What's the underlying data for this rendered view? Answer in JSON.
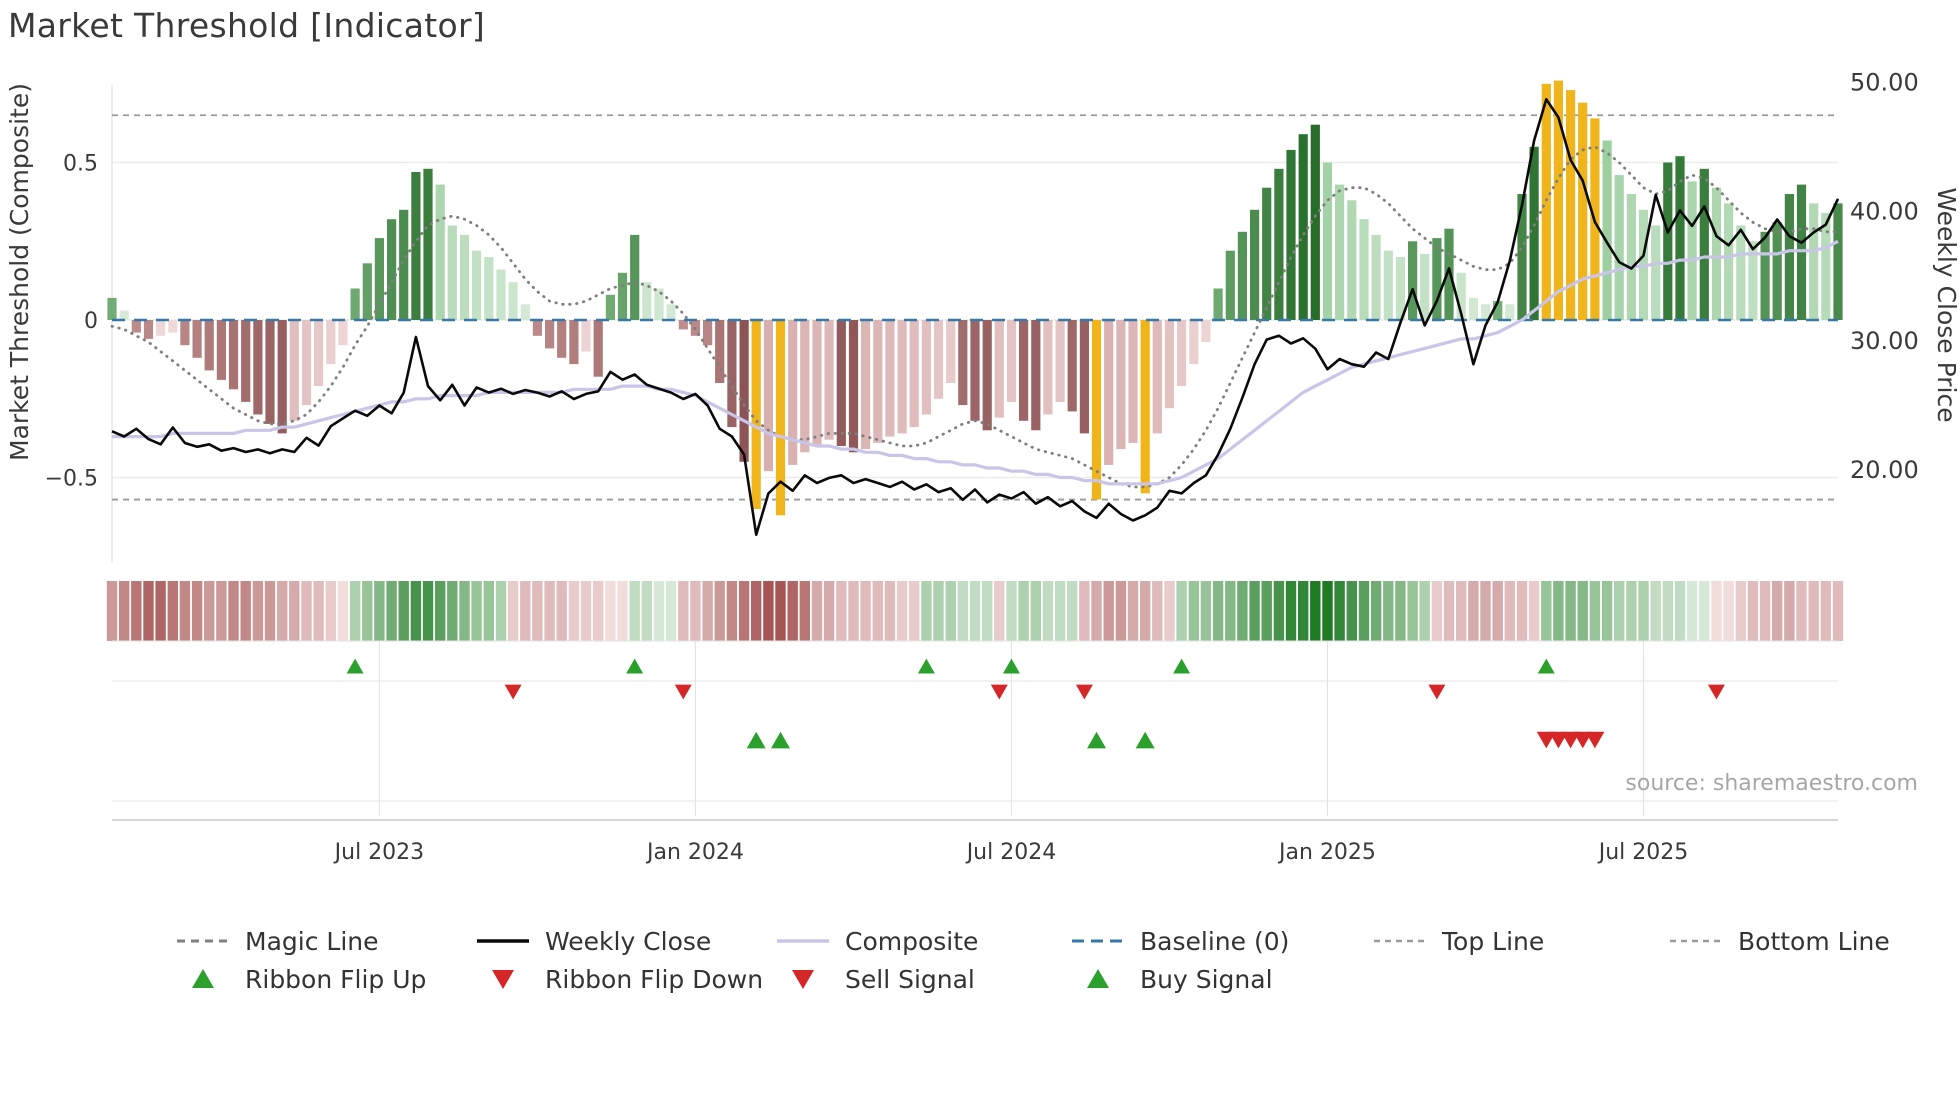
{
  "chart_data": {
    "type": "mixed",
    "title": "Market Threshold [Indicator]",
    "source": "source: sharemaestro.com",
    "left_axis": {
      "label": "Market Threshold (Composite)",
      "ticks": [
        "0.5",
        "0",
        "−0.5"
      ],
      "tick_values": [
        0.5,
        0,
        -0.5
      ]
    },
    "right_axis": {
      "label": "Weekly Close Price",
      "ticks": [
        "50.00",
        "40.00",
        "30.00",
        "20.00"
      ],
      "tick_values": [
        50,
        40,
        30,
        20
      ]
    },
    "x_ticks": [
      {
        "index": 22,
        "label": "Jul 2023"
      },
      {
        "index": 48,
        "label": "Jan 2024"
      },
      {
        "index": 74,
        "label": "Jul 2024"
      },
      {
        "index": 100,
        "label": "Jan 2025"
      },
      {
        "index": 126,
        "label": "Jul 2025"
      }
    ],
    "top_line": 0.65,
    "bottom_line": -0.57,
    "baseline": 0,
    "threshold_bars": [
      0.07,
      0.03,
      -0.04,
      -0.06,
      -0.05,
      -0.04,
      -0.08,
      -0.12,
      -0.16,
      -0.19,
      -0.22,
      -0.26,
      -0.3,
      -0.33,
      -0.36,
      -0.32,
      -0.27,
      -0.21,
      -0.14,
      -0.08,
      0.1,
      0.18,
      0.26,
      0.32,
      0.35,
      0.47,
      0.48,
      0.43,
      0.3,
      0.27,
      0.22,
      0.2,
      0.16,
      0.12,
      0.05,
      -0.05,
      -0.09,
      -0.12,
      -0.14,
      -0.1,
      -0.18,
      0.08,
      0.15,
      0.27,
      0.12,
      0.1,
      0.05,
      -0.03,
      -0.05,
      -0.08,
      -0.2,
      -0.34,
      -0.45,
      -0.6,
      -0.48,
      -0.62,
      -0.46,
      -0.42,
      -0.4,
      -0.38,
      -0.4,
      -0.42,
      -0.41,
      -0.39,
      -0.37,
      -0.36,
      -0.34,
      -0.3,
      -0.25,
      -0.2,
      -0.27,
      -0.32,
      -0.35,
      -0.31,
      -0.26,
      -0.32,
      -0.35,
      -0.3,
      -0.26,
      -0.29,
      -0.36,
      -0.57,
      -0.46,
      -0.41,
      -0.39,
      -0.55,
      -0.36,
      -0.28,
      -0.21,
      -0.14,
      -0.07,
      0.1,
      0.22,
      0.28,
      0.35,
      0.42,
      0.48,
      0.54,
      0.59,
      0.62,
      0.5,
      0.43,
      0.38,
      0.32,
      0.27,
      0.22,
      0.2,
      0.25,
      0.21,
      0.26,
      0.29,
      0.15,
      0.07,
      0.05,
      0.06,
      0.05,
      0.4,
      0.55,
      0.75,
      0.76,
      0.73,
      0.69,
      0.64,
      0.57,
      0.46,
      0.4,
      0.35,
      0.3,
      0.5,
      0.52,
      0.44,
      0.48,
      0.42,
      0.37,
      0.3,
      0.25,
      0.28,
      0.31,
      0.4,
      0.43,
      0.37,
      0.34,
      0.37
    ],
    "weekly_close": [
      23.0,
      22.6,
      23.2,
      22.4,
      22.0,
      23.3,
      22.1,
      21.8,
      22.0,
      21.5,
      21.7,
      21.4,
      21.6,
      21.3,
      21.6,
      21.4,
      22.5,
      21.9,
      23.4,
      24.0,
      24.6,
      24.2,
      25.0,
      24.4,
      26.0,
      30.3,
      26.5,
      25.4,
      26.6,
      25.0,
      26.4,
      26.0,
      26.3,
      25.9,
      26.2,
      26.0,
      25.7,
      26.1,
      25.5,
      25.9,
      26.1,
      27.6,
      27.0,
      27.4,
      26.6,
      26.3,
      26.0,
      25.5,
      25.9,
      25.0,
      23.2,
      22.6,
      21.2,
      15.0,
      18.2,
      19.1,
      18.4,
      19.6,
      19.0,
      19.4,
      19.6,
      19.0,
      19.3,
      19.0,
      18.7,
      19.1,
      18.5,
      18.9,
      18.3,
      18.6,
      17.7,
      18.5,
      17.5,
      18.1,
      17.8,
      18.3,
      17.4,
      17.9,
      17.2,
      17.6,
      16.8,
      16.3,
      17.4,
      16.6,
      16.1,
      16.5,
      17.1,
      18.4,
      18.2,
      19.0,
      19.6,
      21.2,
      23.2,
      25.6,
      28.2,
      30.1,
      30.4,
      29.8,
      30.2,
      29.4,
      27.8,
      28.6,
      28.2,
      28.0,
      29.1,
      28.6,
      31.4,
      34.0,
      31.2,
      33.1,
      35.6,
      32.1,
      28.2,
      31.2,
      33.0,
      36.2,
      40.5,
      45.5,
      48.7,
      47.3,
      44.0,
      42.4,
      39.2,
      37.6,
      36.1,
      35.6,
      36.6,
      41.3,
      38.4,
      40.1,
      38.9,
      40.4,
      38.1,
      37.4,
      38.6,
      37.1,
      38.0,
      39.4,
      38.1,
      37.6,
      38.4,
      39.0,
      41.0
    ],
    "magic_line": [
      -0.02,
      -0.03,
      -0.05,
      -0.07,
      -0.1,
      -0.13,
      -0.16,
      -0.19,
      -0.22,
      -0.25,
      -0.28,
      -0.3,
      -0.32,
      -0.33,
      -0.33,
      -0.32,
      -0.3,
      -0.26,
      -0.21,
      -0.15,
      -0.08,
      -0.02,
      0.05,
      0.12,
      0.19,
      0.25,
      0.3,
      0.32,
      0.33,
      0.32,
      0.3,
      0.27,
      0.23,
      0.18,
      0.13,
      0.09,
      0.06,
      0.05,
      0.05,
      0.06,
      0.08,
      0.1,
      0.11,
      0.12,
      0.11,
      0.09,
      0.06,
      0.02,
      -0.03,
      -0.09,
      -0.15,
      -0.21,
      -0.27,
      -0.32,
      -0.35,
      -0.37,
      -0.38,
      -0.38,
      -0.37,
      -0.36,
      -0.36,
      -0.36,
      -0.37,
      -0.38,
      -0.39,
      -0.4,
      -0.4,
      -0.39,
      -0.37,
      -0.35,
      -0.33,
      -0.32,
      -0.33,
      -0.35,
      -0.37,
      -0.39,
      -0.41,
      -0.42,
      -0.43,
      -0.44,
      -0.46,
      -0.48,
      -0.5,
      -0.52,
      -0.53,
      -0.53,
      -0.52,
      -0.5,
      -0.46,
      -0.41,
      -0.35,
      -0.28,
      -0.2,
      -0.12,
      -0.04,
      0.04,
      0.12,
      0.2,
      0.27,
      0.33,
      0.38,
      0.41,
      0.42,
      0.42,
      0.4,
      0.37,
      0.33,
      0.29,
      0.26,
      0.23,
      0.21,
      0.19,
      0.17,
      0.16,
      0.16,
      0.18,
      0.23,
      0.3,
      0.38,
      0.45,
      0.51,
      0.54,
      0.55,
      0.53,
      0.5,
      0.46,
      0.42,
      0.4,
      0.41,
      0.44,
      0.46,
      0.45,
      0.42,
      0.38,
      0.34,
      0.31,
      0.29,
      0.28,
      0.28,
      0.29,
      0.29,
      0.28,
      0.28
    ],
    "composite": [
      -0.37,
      -0.37,
      -0.37,
      -0.37,
      -0.37,
      -0.36,
      -0.36,
      -0.36,
      -0.36,
      -0.36,
      -0.36,
      -0.35,
      -0.35,
      -0.35,
      -0.34,
      -0.34,
      -0.33,
      -0.32,
      -0.31,
      -0.3,
      -0.29,
      -0.28,
      -0.27,
      -0.26,
      -0.26,
      -0.25,
      -0.25,
      -0.24,
      -0.24,
      -0.24,
      -0.24,
      -0.23,
      -0.23,
      -0.23,
      -0.23,
      -0.23,
      -0.23,
      -0.23,
      -0.22,
      -0.22,
      -0.22,
      -0.22,
      -0.21,
      -0.21,
      -0.21,
      -0.22,
      -0.22,
      -0.23,
      -0.24,
      -0.26,
      -0.28,
      -0.3,
      -0.32,
      -0.34,
      -0.36,
      -0.37,
      -0.38,
      -0.39,
      -0.4,
      -0.4,
      -0.41,
      -0.41,
      -0.42,
      -0.42,
      -0.43,
      -0.43,
      -0.44,
      -0.44,
      -0.45,
      -0.45,
      -0.46,
      -0.46,
      -0.47,
      -0.47,
      -0.48,
      -0.48,
      -0.49,
      -0.49,
      -0.5,
      -0.5,
      -0.51,
      -0.51,
      -0.52,
      -0.52,
      -0.52,
      -0.52,
      -0.52,
      -0.51,
      -0.5,
      -0.48,
      -0.46,
      -0.44,
      -0.41,
      -0.38,
      -0.35,
      -0.32,
      -0.29,
      -0.26,
      -0.23,
      -0.21,
      -0.19,
      -0.17,
      -0.15,
      -0.14,
      -0.13,
      -0.12,
      -0.11,
      -0.1,
      -0.09,
      -0.08,
      -0.07,
      -0.06,
      -0.06,
      -0.05,
      -0.04,
      -0.02,
      0.0,
      0.03,
      0.06,
      0.09,
      0.11,
      0.13,
      0.14,
      0.15,
      0.16,
      0.17,
      0.17,
      0.18,
      0.18,
      0.19,
      0.19,
      0.2,
      0.2,
      0.2,
      0.21,
      0.21,
      0.21,
      0.21,
      0.22,
      0.22,
      0.22,
      0.23,
      0.25
    ],
    "ribbon": [
      -0.5,
      -0.6,
      -0.7,
      -0.8,
      -0.8,
      -0.7,
      -0.6,
      -0.6,
      -0.5,
      -0.5,
      -0.6,
      -0.6,
      -0.5,
      -0.5,
      -0.4,
      -0.4,
      -0.3,
      -0.3,
      -0.2,
      -0.1,
      0.3,
      0.4,
      0.5,
      0.6,
      0.7,
      0.8,
      0.8,
      0.7,
      0.6,
      0.5,
      0.4,
      0.4,
      0.3,
      -0.2,
      -0.3,
      -0.3,
      -0.3,
      -0.3,
      -0.2,
      -0.2,
      -0.2,
      -0.1,
      -0.1,
      0.2,
      0.2,
      0.1,
      0.1,
      -0.3,
      -0.3,
      -0.4,
      -0.5,
      -0.6,
      -0.7,
      -0.8,
      -0.9,
      -0.9,
      -0.8,
      -0.7,
      -0.4,
      -0.4,
      -0.3,
      -0.3,
      -0.3,
      -0.3,
      -0.3,
      -0.2,
      -0.2,
      0.3,
      0.3,
      0.3,
      0.2,
      0.2,
      0.2,
      -0.2,
      0.2,
      0.3,
      0.3,
      0.2,
      0.2,
      0.2,
      -0.3,
      -0.4,
      -0.5,
      -0.5,
      -0.4,
      -0.4,
      -0.3,
      -0.2,
      0.3,
      0.4,
      0.4,
      0.5,
      0.5,
      0.6,
      0.7,
      0.7,
      0.8,
      0.9,
      0.9,
      1.0,
      1.0,
      0.9,
      0.8,
      0.7,
      0.6,
      0.5,
      0.5,
      0.4,
      0.3,
      -0.2,
      -0.3,
      -0.3,
      -0.4,
      -0.4,
      -0.4,
      -0.3,
      -0.3,
      -0.2,
      0.4,
      0.5,
      0.5,
      0.5,
      0.4,
      0.4,
      0.3,
      0.3,
      0.3,
      0.2,
      0.2,
      0.2,
      0.1,
      0.1,
      -0.1,
      -0.1,
      -0.2,
      -0.3,
      -0.3,
      -0.4,
      -0.4,
      -0.3,
      -0.3,
      -0.3,
      -0.3
    ],
    "signals": {
      "buy": [
        53,
        55,
        81,
        85
      ],
      "sell": [
        118,
        119,
        120,
        121,
        122
      ],
      "ribbon_flip_up": [
        20,
        43,
        67,
        74,
        88,
        118
      ],
      "ribbon_flip_down": [
        33,
        47,
        73,
        80,
        109,
        132
      ]
    },
    "colors": {
      "signal_yellow": "#f0b51a",
      "weekly_close": "#0a0a0a",
      "magic_line": "#7f7f7f",
      "composite": "#c9c5e8",
      "baseline": "#3878a8",
      "flip_up": "#2ca02c",
      "flip_down": "#d62728",
      "bar_green_dark": "#1c641f",
      "bar_green_light": "#8fc893",
      "bar_red_dark": "#6f3333",
      "bar_red_light": "#cc9a9a"
    }
  },
  "legend": {
    "row1": [
      {
        "label": "Magic Line",
        "swatch": "dashed-gray-line"
      },
      {
        "label": "Weekly Close",
        "swatch": "solid-black-line"
      },
      {
        "label": "Composite",
        "swatch": "solid-lavender-line"
      },
      {
        "label": "Baseline (0)",
        "swatch": "dashed-blue-line"
      },
      {
        "label": "Top Line",
        "swatch": "dashed-gray-line"
      },
      {
        "label": "Bottom Line",
        "swatch": "dashed-gray-line"
      }
    ],
    "row2": [
      {
        "label": "Ribbon Flip Up",
        "swatch": "green-up-triangle"
      },
      {
        "label": "Ribbon Flip Down",
        "swatch": "red-down-triangle"
      },
      {
        "label": "Sell Signal",
        "swatch": "red-down-triangle"
      },
      {
        "label": "Buy Signal",
        "swatch": "green-up-triangle"
      }
    ]
  }
}
